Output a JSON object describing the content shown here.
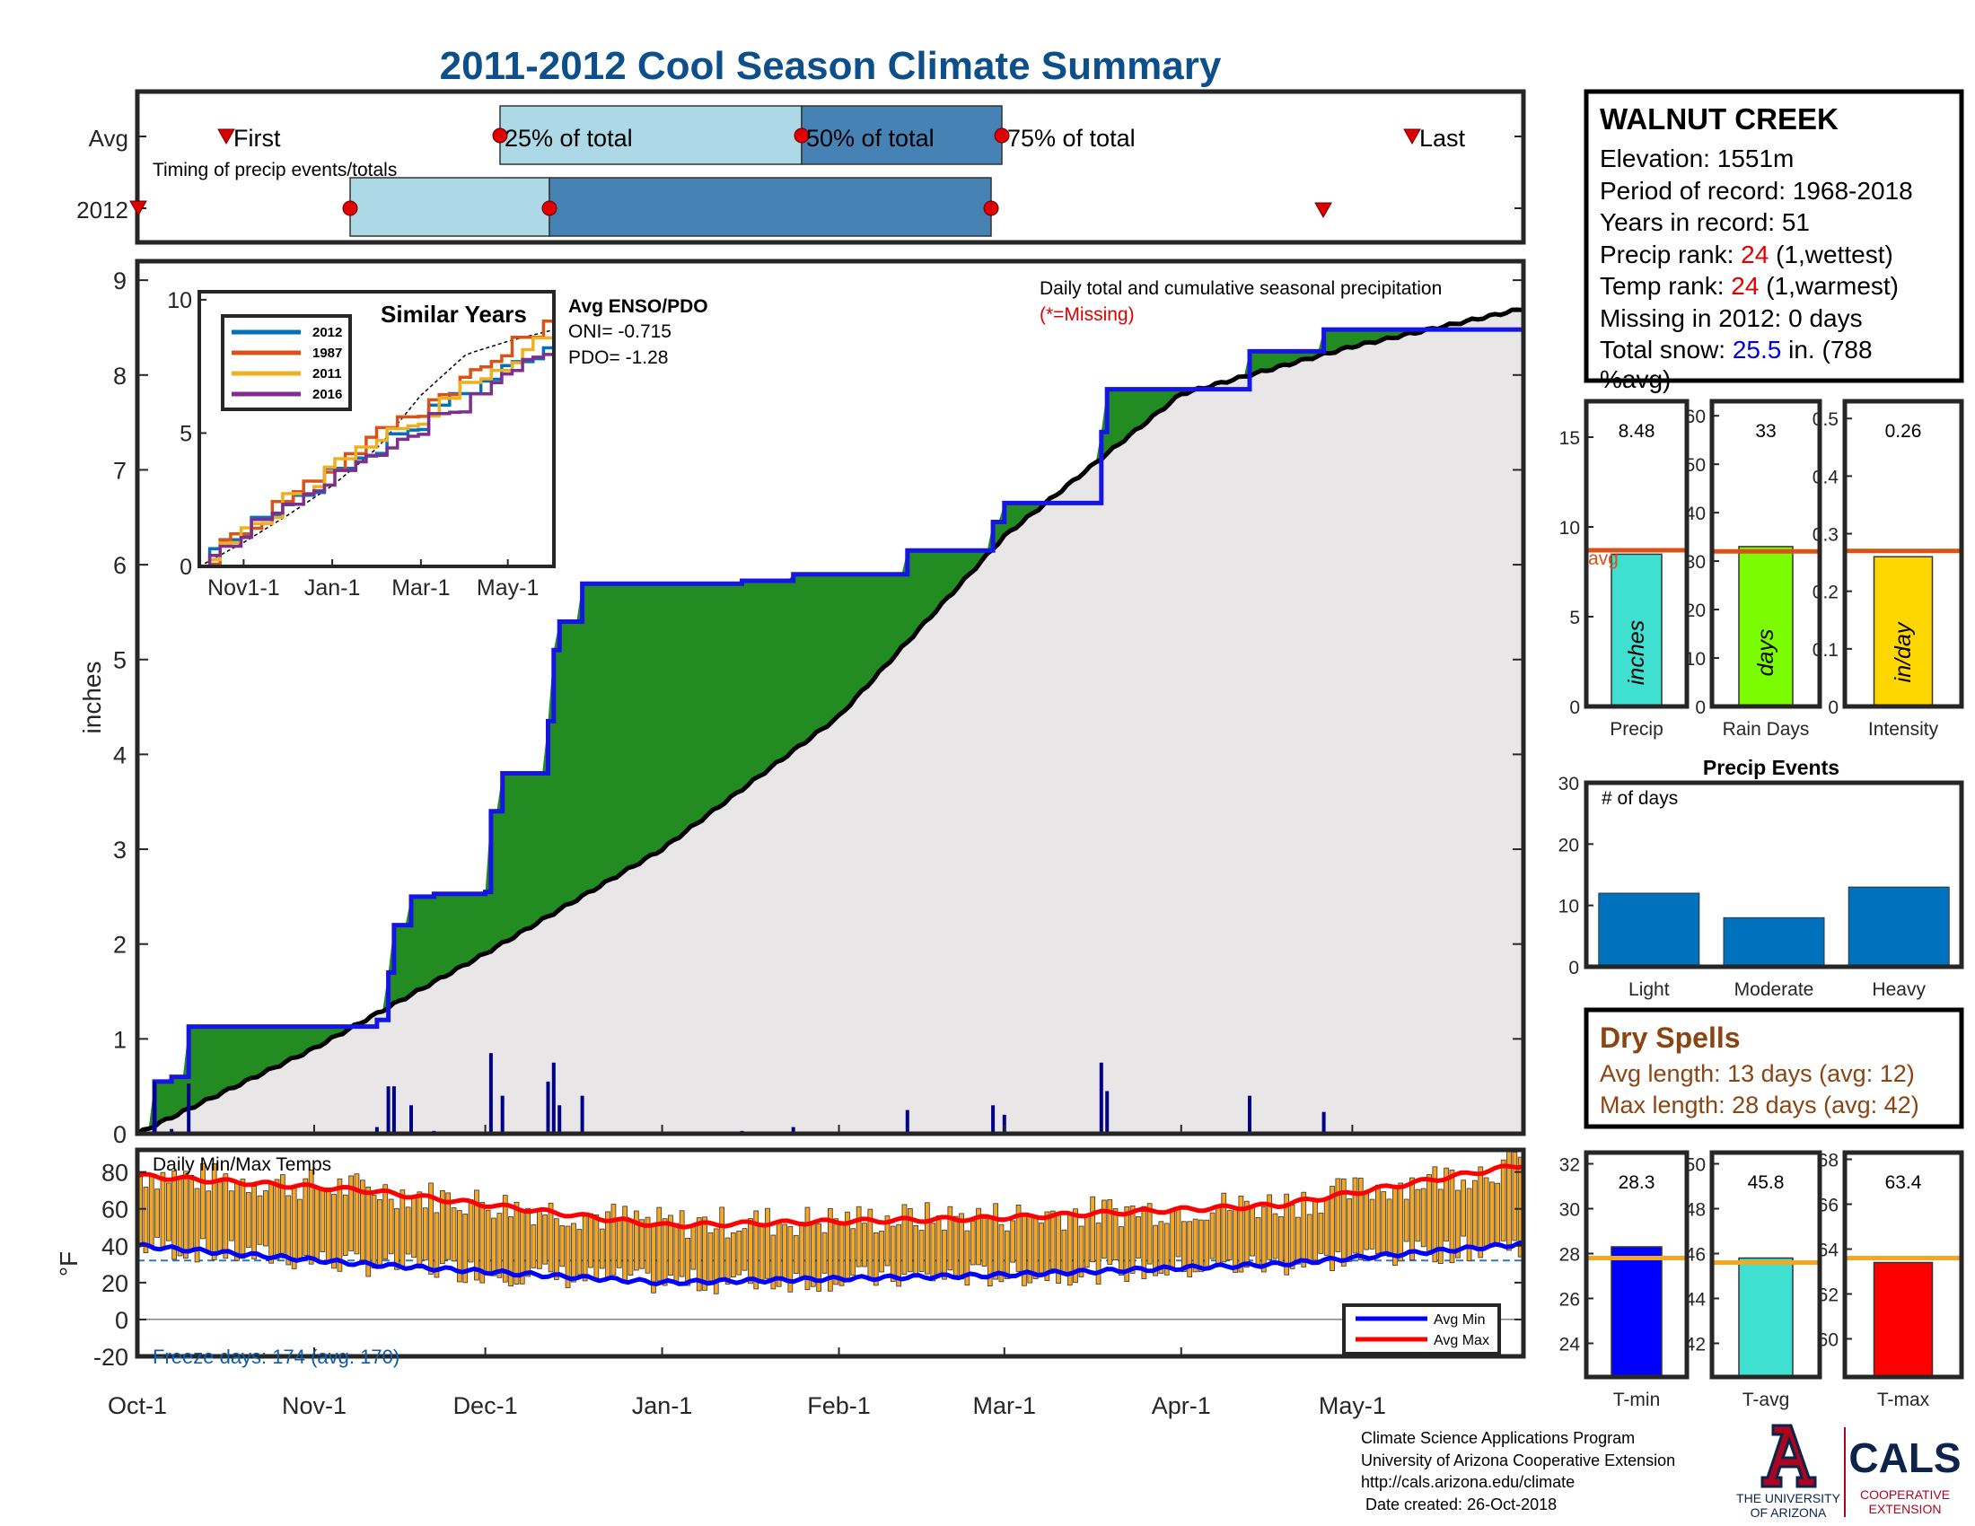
{
  "title": "2011-2012 Cool Season Climate Summary",
  "timing": {
    "row_labels": [
      "Avg",
      "2012"
    ],
    "caption": "Timing of precip events/totals",
    "avg_labels": [
      "First",
      "25% of total",
      "50% of total",
      "75% of total",
      "Last"
    ]
  },
  "main": {
    "ylabel": "inches",
    "yticks": [
      "0",
      "1",
      "2",
      "3",
      "4",
      "5",
      "6",
      "7",
      "8",
      "9"
    ],
    "caption": "Daily total and cumulative seasonal precipitation",
    "missing_note": "(*=Missing)",
    "enso_title": "Avg ENSO/PDO",
    "oni": "ONI= -0.715",
    "pdo": "PDO= -1.28"
  },
  "inset": {
    "title": "Similar Years",
    "yticks": [
      "0",
      "5",
      "10"
    ],
    "xticks": [
      "Nov1-1",
      "Jan-1",
      "Mar-1",
      "May-1"
    ],
    "legend": [
      {
        "label": "2012",
        "color": "#0072bd"
      },
      {
        "label": "1987",
        "color": "#d95319"
      },
      {
        "label": "2011",
        "color": "#edb120"
      },
      {
        "label": "2016",
        "color": "#7e2f8e"
      }
    ]
  },
  "temps": {
    "caption": "Daily Min/Max Temps",
    "ylabel": "°F",
    "yticks": [
      "-20",
      "0",
      "20",
      "40",
      "60",
      "80"
    ],
    "xticks": [
      "Oct-1",
      "Nov-1",
      "Dec-1",
      "Jan-1",
      "Feb-1",
      "Mar-1",
      "Apr-1",
      "May-1"
    ],
    "freeze": "Freeze days: 174 (avg. 170)",
    "legend": [
      {
        "label": "Avg Min",
        "color": "#0000ff"
      },
      {
        "label": "Avg Max",
        "color": "#ff0000"
      }
    ]
  },
  "info": {
    "station": "WALNUT CREEK",
    "elevation": "Elevation: 1551m",
    "period": "Period of record: 1968-2018",
    "years": "Years in record: 51",
    "precip_rank_label": "Precip rank: ",
    "precip_rank_value": "24",
    "precip_rank_note": " (1,wettest)",
    "temp_rank_label": "Temp rank: ",
    "temp_rank_value": "24",
    "temp_rank_note": " (1,warmest)",
    "missing": "Missing in 2012: 0 days",
    "snow_label": "Total snow: ",
    "snow_value": "25.5",
    "snow_note": " in. (788",
    "snow_note2": "%avg)"
  },
  "summary_bars": {
    "precip": {
      "value_label": "8.48",
      "value": 8.48,
      "avg": 8.7,
      "ymax": 17,
      "yticks": [
        "0",
        "5",
        "10",
        "15"
      ],
      "inner": "inches",
      "xlabel": "Precip",
      "color": "#40e0d0",
      "avg_label": "avg"
    },
    "rain_days": {
      "value_label": "33",
      "value": 33,
      "avg": 32,
      "ymax": 63,
      "yticks": [
        "0",
        "10",
        "20",
        "30",
        "40",
        "50",
        "60"
      ],
      "inner": "days",
      "xlabel": "Rain Days",
      "color": "#7cfc00"
    },
    "intensity": {
      "value_label": "0.26",
      "value": 0.26,
      "avg": 0.27,
      "ymax": 0.53,
      "yticks": [
        "0",
        "0.1",
        "0.2",
        "0.3",
        "0.4",
        "0.5"
      ],
      "inner": "in/day",
      "xlabel": "Intensity",
      "color": "#ffd700"
    }
  },
  "precip_events": {
    "title": "Precip Events",
    "subtitle": "# of days",
    "categories": [
      "Light",
      "Moderate",
      "Heavy"
    ],
    "values": [
      12,
      8,
      13
    ],
    "yticks": [
      "0",
      "10",
      "20",
      "30"
    ],
    "color": "#0072bd"
  },
  "dry_spells": {
    "title": "Dry Spells",
    "avg": "Avg length: 13 days (avg: 12)",
    "max": "Max length: 28 days (avg: 42)",
    "color": "#8b4513"
  },
  "temp_bars": {
    "tmin": {
      "value_label": "28.3",
      "value": 28.3,
      "avg": 27.8,
      "ymin": 22.5,
      "ymax": 32.5,
      "yticks": [
        "24",
        "26",
        "28",
        "30",
        "32"
      ],
      "xlabel": "T-min",
      "color": "#0000ff"
    },
    "tavg": {
      "value_label": "45.8",
      "value": 45.8,
      "avg": 45.6,
      "ymin": 40.5,
      "ymax": 50.5,
      "yticks": [
        "42",
        "44",
        "46",
        "48",
        "50"
      ],
      "xlabel": "T-avg",
      "color": "#40e0d0"
    },
    "tmax": {
      "value_label": "63.4",
      "value": 63.4,
      "avg": 63.6,
      "ymin": 58.3,
      "ymax": 68.3,
      "yticks": [
        "60",
        "62",
        "64",
        "66",
        "68"
      ],
      "xlabel": "T-max",
      "color": "#ff0000"
    }
  },
  "footer": {
    "line1": "Climate Science Applications Program",
    "line2": "University of Arizona Cooperative Extension",
    "line3": "http://cals.arizona.edu/climate",
    "line4": " Date created: 26-Oct-2018",
    "ua_line1": "THE UNIVERSITY",
    "ua_line2": "OF ARIZONA",
    "cals": "CALS",
    "cals_line1": "COOPERATIVE",
    "cals_line2": "EXTENSION"
  },
  "chart_data": {
    "type": "area",
    "title": "2011-2012 Cool Season Climate Summary",
    "ylabel": "inches",
    "ylim": [
      0,
      9.2
    ],
    "x_axis": "date (Oct-1 to end of May)",
    "cumulative_2012": [
      {
        "date": "Oct-1",
        "value": 0.0
      },
      {
        "date": "Oct-4",
        "value": 0.55
      },
      {
        "date": "Oct-7",
        "value": 0.6
      },
      {
        "date": "Oct-10",
        "value": 1.13
      },
      {
        "date": "Nov-12",
        "value": 1.2
      },
      {
        "date": "Nov-14",
        "value": 1.7
      },
      {
        "date": "Nov-15",
        "value": 2.2
      },
      {
        "date": "Nov-18",
        "value": 2.5
      },
      {
        "date": "Nov-22",
        "value": 2.53
      },
      {
        "date": "Dec-1",
        "value": 2.55
      },
      {
        "date": "Dec-2",
        "value": 3.4
      },
      {
        "date": "Dec-4",
        "value": 3.8
      },
      {
        "date": "Dec-12",
        "value": 4.35
      },
      {
        "date": "Dec-13",
        "value": 5.1
      },
      {
        "date": "Dec-14",
        "value": 5.4
      },
      {
        "date": "Dec-18",
        "value": 5.8
      },
      {
        "date": "Jan-15",
        "value": 5.83
      },
      {
        "date": "Jan-24",
        "value": 5.9
      },
      {
        "date": "Feb-13",
        "value": 6.15
      },
      {
        "date": "Feb-28",
        "value": 6.45
      },
      {
        "date": "Mar-1",
        "value": 6.65
      },
      {
        "date": "Mar-18",
        "value": 7.4
      },
      {
        "date": "Mar-19",
        "value": 7.85
      },
      {
        "date": "Apr-13",
        "value": 8.25
      },
      {
        "date": "Apr-26",
        "value": 8.48
      }
    ],
    "cumulative_avg": [
      {
        "date": "Oct-1",
        "value": 0.0
      },
      {
        "date": "Nov-1",
        "value": 0.9
      },
      {
        "date": "Dec-1",
        "value": 1.9
      },
      {
        "date": "Jan-1",
        "value": 3.0
      },
      {
        "date": "Feb-1",
        "value": 4.4
      },
      {
        "date": "Mar-1",
        "value": 6.3
      },
      {
        "date": "Apr-1",
        "value": 7.8
      },
      {
        "date": "May-1",
        "value": 8.3
      },
      {
        "date": "May-31",
        "value": 8.7
      }
    ],
    "temps_avg_max": [
      {
        "date": "Oct-1",
        "value": 78
      },
      {
        "date": "Jan-1",
        "value": 51
      },
      {
        "date": "May-31",
        "value": 84
      }
    ],
    "temps_avg_min": [
      {
        "date": "Oct-1",
        "value": 40
      },
      {
        "date": "Jan-1",
        "value": 20
      },
      {
        "date": "May-31",
        "value": 41
      }
    ],
    "precip_events": {
      "categories": [
        "Light",
        "Moderate",
        "Heavy"
      ],
      "values": [
        12,
        8,
        13
      ]
    }
  }
}
